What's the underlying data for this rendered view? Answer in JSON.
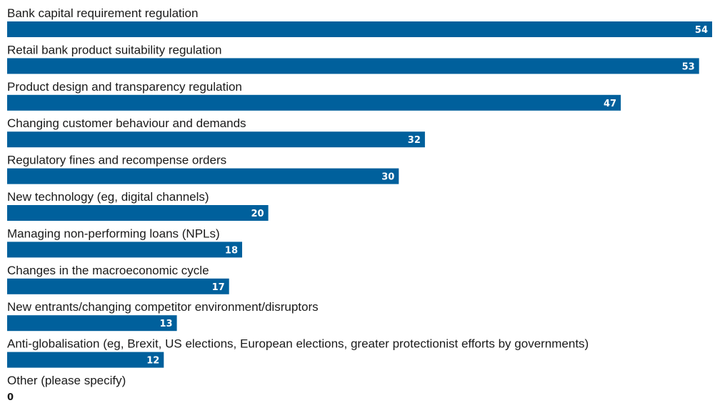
{
  "chart_data": {
    "type": "bar",
    "orientation": "horizontal",
    "title": "",
    "xlabel": "",
    "ylabel": "",
    "xlim": [
      0,
      54
    ],
    "grid": false,
    "legend": "none",
    "bar_color": "#00609c",
    "categories": [
      "Bank capital requirement regulation",
      "Retail bank product suitability regulation",
      "Product design and transparency regulation",
      "Changing customer behaviour and demands",
      "Regulatory fines and recompense orders",
      "New technology (eg, digital channels)",
      "Managing non-performing loans (NPLs)",
      "Changes in the macroeconomic cycle",
      "New entrants/changing competitor environment/disruptors",
      "Anti-globalisation (eg, Brexit, US elections, European elections, greater protectionist efforts by governments)",
      "Other (please specify)"
    ],
    "values": [
      54,
      53,
      47,
      32,
      30,
      20,
      18,
      17,
      13,
      12,
      0
    ]
  }
}
